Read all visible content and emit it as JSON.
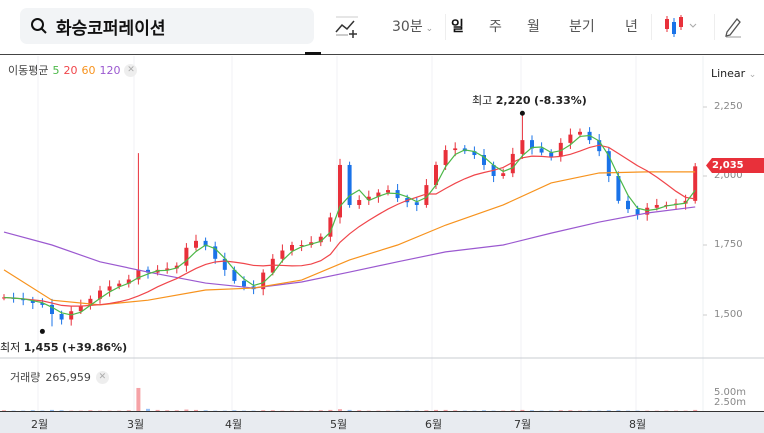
{
  "header": {
    "search_value": "화승코퍼레이션",
    "interval": "30분",
    "tabs": [
      "일",
      "주",
      "월",
      "분기",
      "년"
    ],
    "active_tab": "일"
  },
  "legend": {
    "label": "이동평균",
    "periods": [
      "5",
      "20",
      "60",
      "120"
    ],
    "colors": [
      "#4cb848",
      "#f0464b",
      "#f7931e",
      "#9b59d0"
    ]
  },
  "scale": "Linear",
  "price_axis": [
    "2,250",
    "2,000",
    "1,750",
    "1,500"
  ],
  "volume_axis": [
    "5.00m",
    "2.50m"
  ],
  "current_price": "2,035",
  "high_label": {
    "prefix": "최고",
    "value": "2,220",
    "change": "(-8.33%)"
  },
  "low_label": {
    "prefix": "최저",
    "value": "1,455",
    "change": "(+39.86%)"
  },
  "volume": {
    "label": "거래량",
    "value": "265,959"
  },
  "months": [
    "2월",
    "3월",
    "4월",
    "5월",
    "6월",
    "7월",
    "8월"
  ],
  "chart_data": {
    "type": "candlestick",
    "ylim": [
      1400,
      2300
    ],
    "colors": {
      "up": "#e8303a",
      "down": "#1a73e8"
    },
    "closes": [
      1560,
      1555,
      1550,
      1540,
      1533,
      1500,
      1480,
      1510,
      1530,
      1555,
      1585,
      1600,
      1610,
      1625,
      1660,
      1650,
      1660,
      1665,
      1675,
      1740,
      1765,
      1745,
      1700,
      1660,
      1620,
      1600,
      1590,
      1650,
      1700,
      1730,
      1750,
      1750,
      1760,
      1780,
      1850,
      2040,
      1895,
      1913,
      1925,
      1940,
      1949,
      1920,
      1905,
      1895,
      1967,
      2040,
      2094,
      2100,
      2090,
      2076,
      2040,
      2000,
      2010,
      2080,
      2130,
      2100,
      2085,
      2070,
      2120,
      2150,
      2160,
      2130,
      2090,
      2000,
      1910,
      1880,
      1860,
      1885,
      1895,
      1895,
      1900,
      1910,
      2035
    ],
    "extremes": [
      {
        "index": 14,
        "high": 2083
      },
      {
        "index": 54,
        "high": 2220
      },
      {
        "index": 5,
        "low": 1455
      }
    ],
    "ma60": [
      [
        0,
        1660
      ],
      [
        5,
        1550
      ],
      [
        10,
        1533
      ],
      [
        15,
        1550
      ],
      [
        21,
        1587
      ],
      [
        26,
        1594
      ],
      [
        31,
        1623
      ],
      [
        36,
        1696
      ],
      [
        41,
        1750
      ],
      [
        46,
        1822
      ],
      [
        52,
        1895
      ],
      [
        57,
        1975
      ],
      [
        62,
        2011
      ],
      [
        67,
        2015
      ],
      [
        72,
        2015
      ]
    ],
    "ma120": [
      [
        0,
        1797
      ],
      [
        5,
        1750
      ],
      [
        10,
        1689
      ],
      [
        15,
        1652
      ],
      [
        21,
        1612
      ],
      [
        26,
        1594
      ],
      [
        31,
        1616
      ],
      [
        36,
        1652
      ],
      [
        41,
        1689
      ],
      [
        46,
        1725
      ],
      [
        52,
        1750
      ],
      [
        57,
        1793
      ],
      [
        62,
        1833
      ],
      [
        67,
        1866
      ],
      [
        72,
        1888
      ]
    ],
    "volumes_m": [
      0.2,
      0.1,
      0.1,
      0.2,
      0.1,
      0.3,
      0.2,
      0.1,
      0.1,
      0.2,
      0.1,
      0.1,
      0.1,
      0.2,
      6.4,
      0.6,
      0.3,
      0.2,
      0.2,
      0.4,
      0.3,
      0.2,
      0.1,
      0.1,
      0.2,
      0.1,
      0.1,
      0.2,
      0.2,
      0.1,
      0.1,
      0.1,
      0.1,
      0.2,
      0.3,
      0.5,
      0.3,
      0.2,
      0.1,
      0.1,
      0.1,
      0.1,
      0.1,
      0.1,
      0.2,
      0.3,
      0.3,
      0.2,
      0.1,
      0.1,
      0.2,
      0.1,
      0.1,
      0.2,
      0.3,
      0.2,
      0.1,
      0.1,
      0.2,
      0.2,
      0.1,
      0.1,
      0.1,
      0.2,
      0.2,
      0.1,
      0.1,
      0.1,
      0.1,
      0.1,
      0.1,
      0.1,
      0.3
    ]
  }
}
